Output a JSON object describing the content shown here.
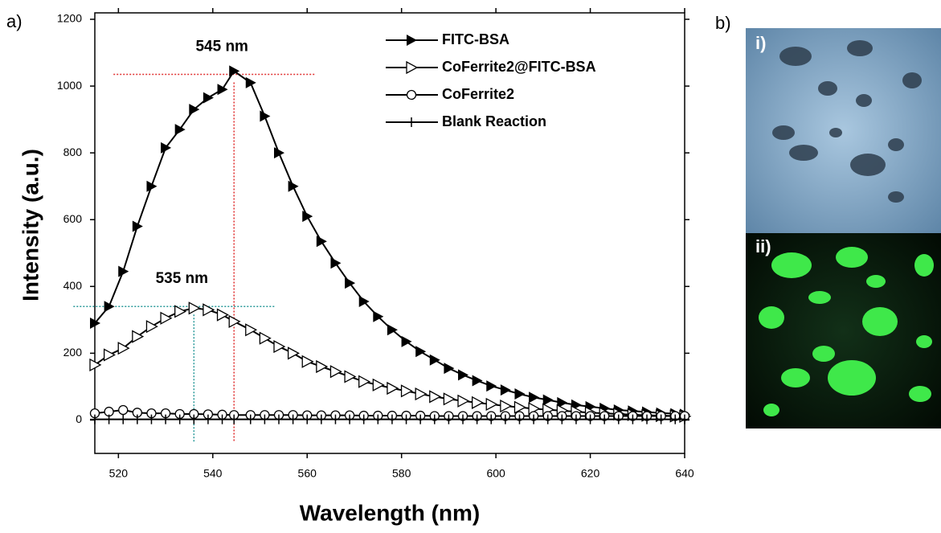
{
  "chart_data": {
    "type": "line",
    "panel_label": "a)",
    "x_label": "Wavelength (nm)",
    "y_label": "Intensity (a.u.)",
    "xlim": [
      515,
      640
    ],
    "xticks": [
      520,
      540,
      560,
      580,
      600,
      620,
      640
    ],
    "ylim": [
      -100,
      1200
    ],
    "yticks": [
      0,
      200,
      400,
      600,
      800,
      1000,
      1200
    ],
    "x": [
      515,
      518,
      521,
      524,
      527,
      530,
      533,
      536,
      539,
      542,
      544.5,
      548,
      551,
      554,
      557,
      560,
      563,
      566,
      569,
      572,
      575,
      578,
      581,
      584,
      587,
      590,
      593,
      596,
      599,
      602,
      605,
      608,
      611,
      614,
      617,
      620,
      623,
      626,
      629,
      632,
      635,
      638,
      640
    ],
    "series": [
      {
        "name": "FITC-BSA",
        "color": "#000000",
        "marker": "filled-triangle",
        "values": [
          290,
          340,
          445,
          580,
          700,
          815,
          870,
          930,
          965,
          990,
          1045,
          1010,
          910,
          800,
          700,
          610,
          535,
          470,
          410,
          355,
          310,
          270,
          235,
          205,
          180,
          155,
          135,
          118,
          102,
          90,
          78,
          68,
          60,
          52,
          45,
          40,
          35,
          30,
          27,
          24,
          21,
          19,
          17
        ]
      },
      {
        "name": "CoFerrite2@FITC-BSA",
        "color": "#000000",
        "marker": "open-triangle",
        "values": [
          165,
          195,
          215,
          250,
          280,
          305,
          325,
          335,
          330,
          315,
          295,
          270,
          245,
          220,
          200,
          175,
          160,
          145,
          130,
          115,
          105,
          95,
          87,
          78,
          70,
          63,
          57,
          52,
          47,
          42,
          38,
          34,
          31,
          28,
          25,
          22,
          20,
          18,
          16,
          14,
          13,
          12,
          11
        ]
      },
      {
        "name": "CoFerrite2",
        "color": "#000000",
        "marker": "open-circle",
        "values": [
          20,
          25,
          30,
          22,
          20,
          20,
          18,
          18,
          17,
          16,
          15,
          15,
          15,
          15,
          15,
          14,
          14,
          14,
          14,
          13,
          13,
          13,
          13,
          13,
          12,
          12,
          12,
          12,
          12,
          12,
          12,
          12,
          12,
          12,
          12,
          12,
          12,
          12,
          12,
          12,
          12,
          12,
          12
        ]
      },
      {
        "name": "Blank Reaction",
        "color": "#000000",
        "marker": "plus",
        "values": [
          2,
          2,
          2,
          2,
          2,
          2,
          2,
          2,
          2,
          2,
          2,
          2,
          2,
          2,
          2,
          2,
          2,
          2,
          2,
          2,
          2,
          2,
          2,
          2,
          2,
          2,
          2,
          2,
          2,
          2,
          2,
          2,
          2,
          2,
          2,
          2,
          2,
          2,
          2,
          2,
          2,
          2,
          2
        ]
      }
    ],
    "annotations": [
      {
        "text": "545 nm",
        "x": 544.5,
        "y": 1035,
        "color": "#e03030"
      },
      {
        "text": "535 nm",
        "x": 536,
        "y": 340,
        "color": "#2a9a9a"
      }
    ]
  },
  "images": {
    "panel_label": "b)",
    "top_label": "i)",
    "bottom_label": "ii)"
  }
}
